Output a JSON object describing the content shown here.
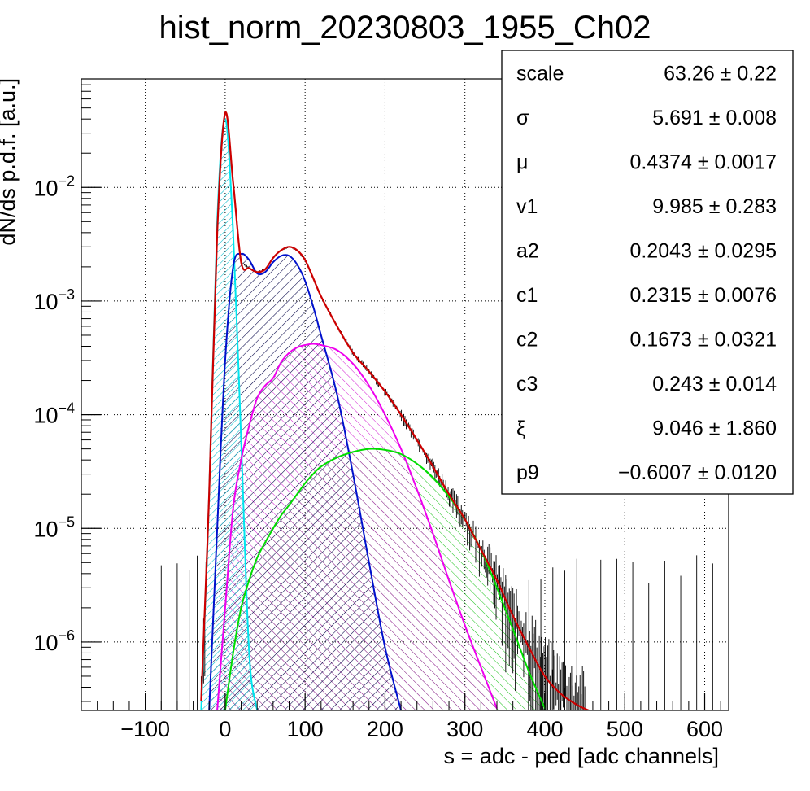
{
  "chart_data": {
    "type": "line",
    "title": "hist_norm_20230803_1955_Ch02",
    "xlabel": "s = adc - ped [adc channels]",
    "ylabel": "dN/ds p.d.f. [a.u.]",
    "xlim": [
      -180,
      630
    ],
    "ylim": [
      2.5e-07,
      0.09
    ],
    "y_scale": "log",
    "grid": true,
    "x_ticks": [
      -100,
      0,
      100,
      200,
      300,
      400,
      500,
      600
    ],
    "x_tick_labels": [
      "−100",
      "0",
      "100",
      "200",
      "300",
      "400",
      "500",
      "600"
    ],
    "y_ticks": [
      {
        "value": 1e-06,
        "base": "10",
        "exp": "−6"
      },
      {
        "value": 1e-05,
        "base": "10",
        "exp": "−5"
      },
      {
        "value": 0.0001,
        "base": "10",
        "exp": "−4"
      },
      {
        "value": 0.001,
        "base": "10",
        "exp": "−3"
      },
      {
        "value": 0.01,
        "base": "10",
        "exp": "−2"
      }
    ],
    "x": [
      -30,
      -20,
      -10,
      0,
      10,
      20,
      30,
      40,
      50,
      60,
      70,
      80,
      90,
      100,
      110,
      120,
      140,
      160,
      180,
      200,
      220,
      240,
      260,
      280,
      300,
      320,
      340,
      360,
      380,
      400,
      420,
      440,
      455
    ],
    "series": [
      {
        "color": "#cc0000",
        "fill": "none",
        "values": [
          3e-07,
          2e-05,
          0.004,
          0.045,
          0.011,
          0.0022,
          0.00195,
          0.0018,
          0.0019,
          0.0024,
          0.0028,
          0.003,
          0.0028,
          0.0023,
          0.0016,
          0.0011,
          0.0006,
          0.00035,
          0.00024,
          0.00016,
          0.0001,
          6e-05,
          3.5e-05,
          2e-05,
          1.2e-05,
          6.5e-06,
          3.5e-06,
          1.7e-06,
          9e-07,
          5e-07,
          3.5e-07,
          2.8e-07,
          2.5e-07
        ]
      },
      {
        "color": "#00e5ee",
        "fill": "#00e5ee",
        "values": [
          2.5e-07,
          2e-05,
          0.005,
          0.04,
          0.004,
          6e-05,
          8e-07,
          2.5e-07,
          null,
          null,
          null,
          null,
          null,
          null,
          null,
          null,
          null,
          null,
          null,
          null,
          null,
          null,
          null,
          null,
          null,
          null,
          null,
          null,
          null,
          null,
          null,
          null,
          null
        ]
      },
      {
        "color": "#0011cc",
        "fill": "#000044",
        "values": [
          null,
          2.5e-07,
          1e-05,
          0.0003,
          0.002,
          0.0026,
          0.0023,
          0.00175,
          0.0018,
          0.0022,
          0.0025,
          0.0025,
          0.0021,
          0.0015,
          0.0009,
          0.0005,
          0.00015,
          3e-05,
          5e-06,
          9e-07,
          2.5e-07,
          null,
          null,
          null,
          null,
          null,
          null,
          null,
          null,
          null,
          null,
          null,
          null
        ]
      },
      {
        "color": "#ee00ee",
        "fill": "#ee00ee",
        "values": [
          null,
          null,
          2.5e-07,
          2e-06,
          1.5e-05,
          4e-05,
          8e-05,
          0.00014,
          0.00018,
          0.00021,
          0.00029,
          0.00035,
          0.00039,
          0.00041,
          0.00042,
          0.00041,
          0.00037,
          0.00028,
          0.00018,
          0.0001,
          5e-05,
          2.2e-05,
          9e-06,
          3.5e-06,
          1.4e-06,
          6e-07,
          2.6e-07,
          null,
          null,
          null,
          null,
          null,
          null
        ]
      },
      {
        "color": "#00dd00",
        "fill": "#00dd00",
        "values": [
          null,
          null,
          null,
          2.5e-07,
          8e-07,
          2e-06,
          3.5e-06,
          5.5e-06,
          7.5e-06,
          1e-05,
          1.3e-05,
          1.6e-05,
          2e-05,
          2.5e-05,
          3e-05,
          3.5e-05,
          4.2e-05,
          4.7e-05,
          5e-05,
          4.9e-05,
          4.5e-05,
          3.7e-05,
          2.8e-05,
          1.9e-05,
          1.2e-05,
          6.5e-06,
          3e-06,
          1.3e-06,
          5.5e-07,
          2.6e-07,
          null,
          null,
          null
        ]
      }
    ]
  },
  "stats_box": {
    "rows": [
      {
        "name": "scale",
        "value": "63.26 ± 0.22"
      },
      {
        "name": "σ",
        "value": "5.691 ± 0.008"
      },
      {
        "name": "μ",
        "value": "0.4374 ± 0.0017"
      },
      {
        "name": "v1",
        "value": "9.985 ± 0.283"
      },
      {
        "name": "a2",
        "value": "0.2043 ± 0.0295"
      },
      {
        "name": "c1",
        "value": "0.2315 ± 0.0076"
      },
      {
        "name": "c2",
        "value": "0.1673 ± 0.0321"
      },
      {
        "name": "c3",
        "value": "0.243 ± 0.014"
      },
      {
        "name": "ξ",
        "value": "9.046 ± 1.860"
      },
      {
        "name": "p9",
        "value": "−0.6007 ± 0.0120"
      }
    ]
  }
}
